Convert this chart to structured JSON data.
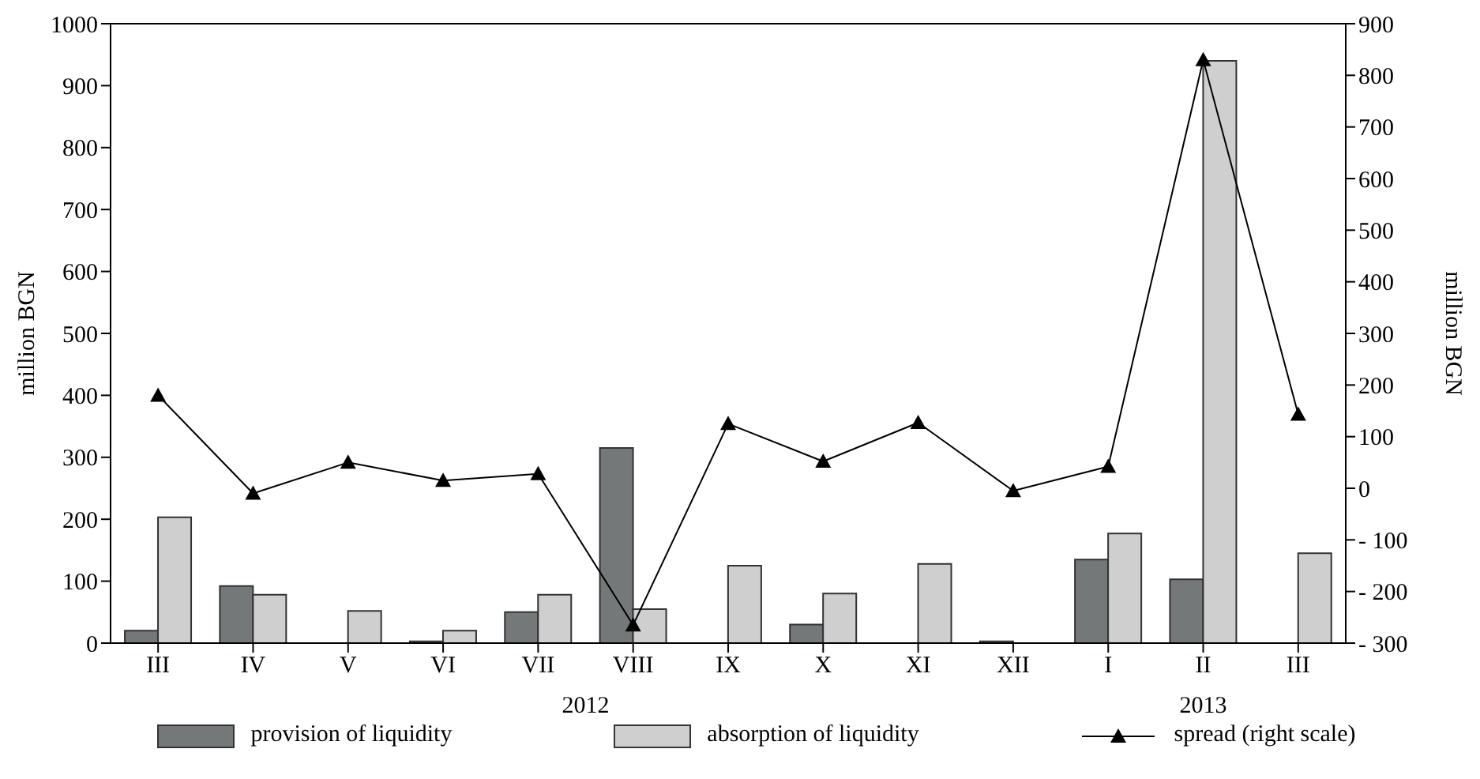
{
  "chart_data": {
    "type": "bar",
    "ylabel": "million BGN",
    "y2label": "million BGN",
    "categories": [
      "III",
      "IV",
      "V",
      "VI",
      "VII",
      "VIII",
      "IX",
      "X",
      "XI",
      "XII",
      "I",
      "II",
      "III"
    ],
    "series": [
      {
        "name": "provision of liquidity",
        "color": "#757878",
        "values": [
          20,
          92,
          0,
          3,
          50,
          315,
          0,
          30,
          0,
          3,
          135,
          103,
          0
        ]
      },
      {
        "name": "absorption of liquidity",
        "color": "#cfcfcf",
        "values": [
          203,
          78,
          52,
          20,
          78,
          55,
          125,
          80,
          128,
          0,
          177,
          940,
          145
        ]
      },
      {
        "name": "spread (right scale)",
        "type": "line",
        "axis": "y2",
        "color": "#000000",
        "marker": "triangle",
        "values": [
          180,
          -10,
          50,
          15,
          28,
          -265,
          125,
          52,
          127,
          -5,
          42,
          830,
          143
        ]
      }
    ],
    "ylim": [
      0,
      1000
    ],
    "yticks": [
      0,
      100,
      200,
      300,
      400,
      500,
      600,
      700,
      800,
      900,
      1000
    ],
    "y2lim": [
      -300,
      900
    ],
    "y2ticks": [
      {
        "value": -300,
        "label": "- 300"
      },
      {
        "value": -200,
        "label": "- 200"
      },
      {
        "value": -100,
        "label": "- 100"
      },
      0,
      100,
      200,
      300,
      400,
      500,
      600,
      700,
      800,
      900
    ],
    "annotations": [
      "2012",
      "2013"
    ],
    "legend": "bottom"
  }
}
